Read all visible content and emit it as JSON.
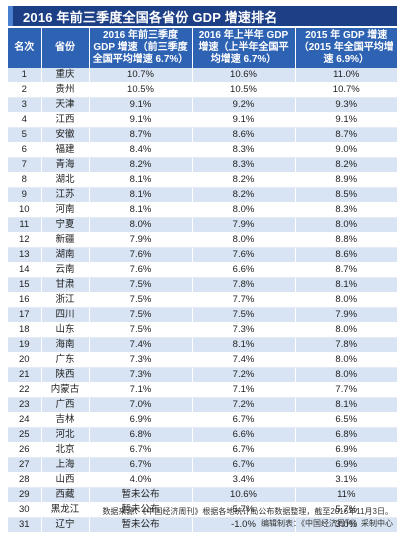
{
  "title": "2016 年前三季度全国各省份 GDP 增速排名",
  "headers": [
    "名次",
    "省份",
    "2016 年前三季度 GDP 增速（前三季度全国平均增速 6.7%）",
    "2016 年上半年 GDP 增速（上半年全国平均增速 6.7%）",
    "2015 年 GDP 增速（2015 年全国平均增速 6.9%）"
  ],
  "rows": [
    [
      "1",
      "重庆",
      "10.7%",
      "10.6%",
      "11.0%"
    ],
    [
      "2",
      "贵州",
      "10.5%",
      "10.5%",
      "10.7%"
    ],
    [
      "3",
      "天津",
      "9.1%",
      "9.2%",
      "9.3%"
    ],
    [
      "4",
      "江西",
      "9.1%",
      "9.1%",
      "9.1%"
    ],
    [
      "5",
      "安徽",
      "8.7%",
      "8.6%",
      "8.7%"
    ],
    [
      "6",
      "福建",
      "8.4%",
      "8.3%",
      "9.0%"
    ],
    [
      "7",
      "青海",
      "8.2%",
      "8.3%",
      "8.2%"
    ],
    [
      "8",
      "湖北",
      "8.1%",
      "8.2%",
      "8.9%"
    ],
    [
      "9",
      "江苏",
      "8.1%",
      "8.2%",
      "8.5%"
    ],
    [
      "10",
      "河南",
      "8.1%",
      "8.0%",
      "8.3%"
    ],
    [
      "11",
      "宁夏",
      "8.0%",
      "7.9%",
      "8.0%"
    ],
    [
      "12",
      "新疆",
      "7.9%",
      "8.0%",
      "8.8%"
    ],
    [
      "13",
      "湖南",
      "7.6%",
      "7.6%",
      "8.6%"
    ],
    [
      "14",
      "云南",
      "7.6%",
      "6.6%",
      "8.7%"
    ],
    [
      "15",
      "甘肃",
      "7.5%",
      "7.8%",
      "8.1%"
    ],
    [
      "16",
      "浙江",
      "7.5%",
      "7.7%",
      "8.0%"
    ],
    [
      "17",
      "四川",
      "7.5%",
      "7.5%",
      "7.9%"
    ],
    [
      "18",
      "山东",
      "7.5%",
      "7.3%",
      "8.0%"
    ],
    [
      "19",
      "海南",
      "7.4%",
      "8.1%",
      "7.8%"
    ],
    [
      "20",
      "广东",
      "7.3%",
      "7.4%",
      "8.0%"
    ],
    [
      "21",
      "陕西",
      "7.3%",
      "7.2%",
      "8.0%"
    ],
    [
      "22",
      "内蒙古",
      "7.1%",
      "7.1%",
      "7.7%"
    ],
    [
      "23",
      "广西",
      "7.0%",
      "7.2%",
      "8.1%"
    ],
    [
      "24",
      "吉林",
      "6.9%",
      "6.7%",
      "6.5%"
    ],
    [
      "25",
      "河北",
      "6.8%",
      "6.6%",
      "6.8%"
    ],
    [
      "26",
      "北京",
      "6.7%",
      "6.7%",
      "6.9%"
    ],
    [
      "27",
      "上海",
      "6.7%",
      "6.7%",
      "6.9%"
    ],
    [
      "28",
      "山西",
      "4.0%",
      "3.4%",
      "3.1%"
    ],
    [
      "29",
      "西藏",
      "暂未公布",
      "10.6%",
      "11%"
    ],
    [
      "30",
      "黑龙江",
      "暂未公布",
      "5.7%",
      "5.7%"
    ],
    [
      "31",
      "辽宁",
      "暂未公布",
      "-1.0%",
      "3.0%"
    ]
  ],
  "footer": {
    "source": "数据来源：《中国经济周刊》根据各地统计局公布数据整理，截至2016年11月3日。",
    "credit": "编辑制表：《中国经济周刊》采制中心"
  },
  "colors": {
    "title_bg": "#1c3f86",
    "header_bg": "#2e62b3",
    "row_stripe": "#d8e4f3"
  }
}
